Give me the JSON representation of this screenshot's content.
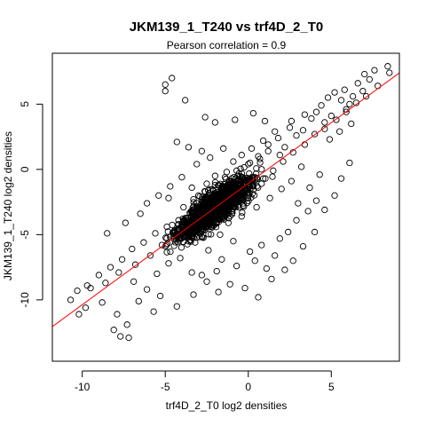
{
  "chart_data": {
    "type": "scatter",
    "title": "JKM139_1_T240 vs trf4D_2_T0",
    "subtitle": "Pearson correlation =  0.9",
    "xlabel": "trf4D_2_T0 log2 densities",
    "ylabel": "JKM139_1_T240 log2 densities",
    "xlim": [
      -11.8,
      9.1
    ],
    "ylim": [
      -14.7,
      8.9
    ],
    "xticks": [
      -10,
      -5,
      0,
      5
    ],
    "yticks": [
      -10,
      -5,
      0,
      5
    ],
    "xtick_labels": [
      "-10",
      "-5",
      "0",
      "5"
    ],
    "ytick_labels": [
      "-10",
      "-5",
      "0",
      "5"
    ],
    "grid": false,
    "fit_line": {
      "slope": 0.93,
      "intercept": -1.07,
      "color": "#ff0000"
    },
    "point_color": "#000000",
    "series": [
      {
        "points": [
          [
            8.4,
            7.9
          ],
          [
            8.5,
            7.4
          ],
          [
            7.6,
            7.6
          ],
          [
            7.0,
            7.3
          ],
          [
            6.6,
            6.6
          ],
          [
            5.8,
            6.1
          ],
          [
            5.2,
            5.9
          ],
          [
            5.6,
            5.3
          ],
          [
            4.8,
            5.5
          ],
          [
            4.4,
            4.9
          ],
          [
            6.1,
            5.0
          ],
          [
            5.9,
            4.6
          ],
          [
            4.1,
            4.4
          ],
          [
            3.8,
            3.9
          ],
          [
            4.6,
            3.6
          ],
          [
            3.4,
            4.2
          ],
          [
            5.0,
            4.1
          ],
          [
            6.3,
            5.6
          ],
          [
            6.9,
            6.0
          ],
          [
            7.3,
            6.9
          ],
          [
            -5.0,
            6.5
          ],
          [
            -5.0,
            6.0
          ],
          [
            -4.6,
            7.0
          ],
          [
            -3.8,
            5.3
          ],
          [
            -2.6,
            4.0
          ],
          [
            -2.0,
            3.6
          ],
          [
            -0.8,
            3.8
          ],
          [
            0.3,
            4.3
          ],
          [
            1.0,
            3.7
          ],
          [
            2.6,
            3.7
          ],
          [
            -4.3,
            2.1
          ],
          [
            -3.6,
            1.7
          ],
          [
            -2.8,
            1.4
          ],
          [
            -3.1,
            0.4
          ],
          [
            -4.0,
            -0.6
          ],
          [
            -2.3,
            0.9
          ],
          [
            -3.4,
            -1.4
          ],
          [
            -4.8,
            -2.2
          ],
          [
            -3.0,
            -2.0
          ],
          [
            -1.5,
            1.6
          ],
          [
            -2.0,
            -0.5
          ],
          [
            -2.5,
            -1.1
          ],
          [
            -1.3,
            -0.2
          ],
          [
            -0.9,
            0.6
          ],
          [
            -0.4,
            1.1
          ],
          [
            0.2,
            1.6
          ],
          [
            0.7,
            0.8
          ],
          [
            1.2,
            1.9
          ],
          [
            1.8,
            2.4
          ],
          [
            2.2,
            1.7
          ],
          [
            2.9,
            2.6
          ],
          [
            3.3,
            3.0
          ],
          [
            2.5,
            3.2
          ],
          [
            1.6,
            2.9
          ],
          [
            0.9,
            2.2
          ],
          [
            0.1,
            0.5
          ],
          [
            -0.2,
            -0.8
          ],
          [
            -0.8,
            -1.3
          ],
          [
            -1.6,
            -2.0
          ],
          [
            -2.2,
            -2.6
          ],
          [
            -2.9,
            -3.1
          ],
          [
            -3.5,
            -3.4
          ],
          [
            -4.2,
            -3.9
          ],
          [
            -4.9,
            -4.4
          ],
          [
            -5.6,
            -4.9
          ],
          [
            -6.3,
            -5.6
          ],
          [
            -7.0,
            -6.1
          ],
          [
            -7.6,
            -6.9
          ],
          [
            -8.3,
            -7.5
          ],
          [
            -9.0,
            -8.1
          ],
          [
            -9.7,
            -8.9
          ],
          [
            -10.3,
            -9.3
          ],
          [
            -10.7,
            -10.0
          ],
          [
            -10.2,
            -11.1
          ],
          [
            -9.8,
            -10.6
          ],
          [
            -8.8,
            -10.2
          ],
          [
            -8.1,
            -12.3
          ],
          [
            -7.9,
            -11.1
          ],
          [
            -7.3,
            -11.9
          ],
          [
            -7.2,
            -12.9
          ],
          [
            -7.7,
            -12.8
          ],
          [
            -6.6,
            -10.1
          ],
          [
            -5.7,
            -10.9
          ],
          [
            -5.3,
            -9.7
          ],
          [
            -4.3,
            -10.5
          ],
          [
            -3.3,
            -9.6
          ],
          [
            -2.5,
            -8.6
          ],
          [
            -1.8,
            -9.4
          ],
          [
            -1.1,
            -8.8
          ],
          [
            -0.2,
            -9.1
          ],
          [
            0.6,
            -9.8
          ],
          [
            1.4,
            -8.4
          ],
          [
            2.2,
            -7.7
          ],
          [
            2.7,
            -7.0
          ],
          [
            3.3,
            -5.9
          ],
          [
            4.0,
            -4.8
          ],
          [
            4.6,
            -3.1
          ],
          [
            5.2,
            -2.0
          ],
          [
            5.6,
            -0.7
          ],
          [
            6.1,
            0.5
          ],
          [
            -8.5,
            -4.9
          ],
          [
            -7.4,
            -4.1
          ],
          [
            -6.5,
            -3.4
          ],
          [
            -6.1,
            -2.6
          ],
          [
            -5.4,
            -2.0
          ],
          [
            -4.7,
            -1.3
          ],
          [
            -3.6,
            -4.2
          ],
          [
            -2.7,
            -4.6
          ],
          [
            -1.7,
            -5.0
          ],
          [
            -0.9,
            -5.5
          ],
          [
            0.1,
            -6.3
          ],
          [
            0.8,
            -5.8
          ],
          [
            1.6,
            -6.6
          ],
          [
            2.4,
            -4.8
          ],
          [
            2.9,
            -3.9
          ],
          [
            3.6,
            -3.2
          ],
          [
            4.1,
            -2.4
          ],
          [
            3.7,
            -1.4
          ],
          [
            4.3,
            -0.4
          ],
          [
            3.2,
            0.2
          ],
          [
            -9.5,
            -9.1
          ],
          [
            -8.6,
            -8.7
          ],
          [
            -7.8,
            -7.9
          ],
          [
            -6.8,
            -7.3
          ],
          [
            -5.9,
            -6.6
          ],
          [
            -5.2,
            -5.8
          ],
          [
            -4.5,
            -5.1
          ],
          [
            -3.8,
            -4.7
          ],
          [
            -3.2,
            -5.6
          ],
          [
            -2.4,
            -6.2
          ],
          [
            -1.6,
            -6.9
          ],
          [
            -0.7,
            -7.4
          ],
          [
            0.4,
            -7.0
          ],
          [
            1.1,
            -7.6
          ],
          [
            1.9,
            -5.3
          ],
          [
            -6.9,
            -8.6
          ],
          [
            -6.1,
            -9.2
          ],
          [
            -5.5,
            -8.0
          ],
          [
            -4.8,
            -7.2
          ],
          [
            -4.1,
            -6.8
          ],
          [
            -3.4,
            -7.9
          ],
          [
            -2.8,
            -8.1
          ],
          [
            -1.9,
            -7.8
          ],
          [
            -1.2,
            -4.1
          ],
          [
            -0.4,
            -3.6
          ],
          [
            0.5,
            -2.9
          ],
          [
            1.3,
            -2.2
          ],
          [
            2.0,
            -1.5
          ],
          [
            2.6,
            -0.9
          ],
          [
            3.0,
            -2.6
          ],
          [
            -1.8,
            -3.0
          ],
          [
            -1.1,
            -2.4
          ],
          [
            -0.5,
            -1.9
          ],
          [
            0.3,
            -1.3
          ],
          [
            0.9,
            -0.7
          ],
          [
            1.5,
            -0.1
          ],
          [
            2.1,
            0.6
          ],
          [
            2.7,
            1.3
          ],
          [
            3.4,
            1.9
          ],
          [
            4.0,
            2.7
          ],
          [
            4.6,
            3.1
          ],
          [
            5.3,
            3.8
          ],
          [
            5.9,
            4.4
          ],
          [
            6.5,
            5.1
          ],
          [
            7.1,
            5.6
          ],
          [
            7.8,
            6.4
          ],
          [
            4.9,
            2.3
          ],
          [
            5.5,
            2.9
          ],
          [
            6.2,
            3.5
          ],
          [
            -3.9,
            -2.9
          ],
          [
            -3.3,
            -2.3
          ],
          [
            -2.6,
            -1.7
          ],
          [
            -2.0,
            -1.2
          ],
          [
            -1.4,
            -0.6
          ],
          [
            -0.7,
            -0.1
          ],
          [
            0.0,
            0.4
          ],
          [
            0.6,
            1.0
          ],
          [
            1.2,
            1.4
          ],
          [
            1.9,
            1.1
          ],
          [
            -0.3,
            -2.6
          ]
        ]
      }
    ]
  }
}
